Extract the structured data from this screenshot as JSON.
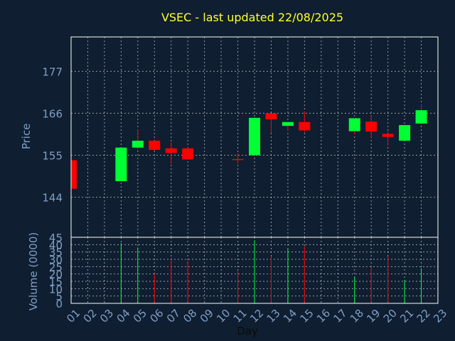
{
  "title": "VSEC - last updated 22/08/2025",
  "colors": {
    "background": "#0f1e30",
    "frame": "#ffffff",
    "grid": "#ffffff",
    "text": "#7f9fc7",
    "title": "#ffff33",
    "up": "#00ff33",
    "down": "#ff0000",
    "wick": "#ff0000"
  },
  "chart_data": [
    {
      "type": "candlestick",
      "ylabel": "Price",
      "ylim": [
        133.5,
        186
      ],
      "yticks": [
        "144",
        "155",
        "166",
        "177"
      ],
      "grid": true,
      "x_ticks": [
        "01",
        "02",
        "03",
        "04",
        "05",
        "06",
        "07",
        "08",
        "09",
        "10",
        "11",
        "12",
        "13",
        "14",
        "15",
        "16",
        "17",
        "18",
        "19",
        "20",
        "21",
        "22",
        "23"
      ],
      "candles": [
        {
          "day": "01",
          "open": 153.7,
          "close": 146.2,
          "high": 153.7,
          "low": 146.2
        },
        {
          "day": "04",
          "open": 148.2,
          "close": 157.0,
          "high": 157.0,
          "low": 148.2
        },
        {
          "day": "05",
          "open": 157.0,
          "close": 158.8,
          "high": 161.8,
          "low": 156.5
        },
        {
          "day": "06",
          "open": 158.8,
          "close": 156.4,
          "high": 158.8,
          "low": 156.2
        },
        {
          "day": "07",
          "open": 156.8,
          "close": 155.6,
          "high": 158.4,
          "low": 152.7
        },
        {
          "day": "08",
          "open": 156.8,
          "close": 153.9,
          "high": 157.0,
          "low": 153.9
        },
        {
          "day": "11",
          "open": 154.0,
          "close": 153.8,
          "high": 155.5,
          "low": 152.8
        },
        {
          "day": "12",
          "open": 155.0,
          "close": 164.8,
          "high": 165.0,
          "low": 155.0
        },
        {
          "day": "13",
          "open": 166.0,
          "close": 164.4,
          "high": 166.0,
          "low": 160.8
        },
        {
          "day": "14",
          "open": 162.7,
          "close": 163.7,
          "high": 163.7,
          "low": 161.5
        },
        {
          "day": "15",
          "open": 163.7,
          "close": 161.5,
          "high": 166.5,
          "low": 161.0
        },
        {
          "day": "18",
          "open": 161.3,
          "close": 164.7,
          "high": 164.7,
          "low": 160.5
        },
        {
          "day": "19",
          "open": 163.8,
          "close": 161.2,
          "high": 165.4,
          "low": 159.7
        },
        {
          "day": "20",
          "open": 160.6,
          "close": 159.8,
          "high": 161.3,
          "low": 157.5
        },
        {
          "day": "21",
          "open": 158.8,
          "close": 162.9,
          "high": 162.9,
          "low": 158.8
        },
        {
          "day": "22",
          "open": 163.3,
          "close": 166.8,
          "high": 168.3,
          "low": 163.3
        }
      ]
    },
    {
      "type": "bar",
      "ylabel": "Volume (0000)",
      "xlabel": "Day",
      "ylim": [
        0,
        45
      ],
      "yticks": [
        "0",
        "5",
        "10",
        "15",
        "20",
        "25",
        "30",
        "35",
        "40",
        "45"
      ],
      "grid": true,
      "bars": [
        {
          "day": "01",
          "value": 0,
          "direction": "down"
        },
        {
          "day": "04",
          "value": 41,
          "direction": "up"
        },
        {
          "day": "05",
          "value": 38,
          "direction": "up"
        },
        {
          "day": "06",
          "value": 20,
          "direction": "down"
        },
        {
          "day": "07",
          "value": 30,
          "direction": "down"
        },
        {
          "day": "08",
          "value": 29,
          "direction": "down"
        },
        {
          "day": "11",
          "value": 22,
          "direction": "down"
        },
        {
          "day": "12",
          "value": 43,
          "direction": "up"
        },
        {
          "day": "13",
          "value": 32,
          "direction": "down"
        },
        {
          "day": "14",
          "value": 37,
          "direction": "up"
        },
        {
          "day": "15",
          "value": 39,
          "direction": "down"
        },
        {
          "day": "18",
          "value": 18,
          "direction": "up"
        },
        {
          "day": "19",
          "value": 25,
          "direction": "down"
        },
        {
          "day": "20",
          "value": 32,
          "direction": "down"
        },
        {
          "day": "21",
          "value": 16,
          "direction": "up"
        },
        {
          "day": "22",
          "value": 24,
          "direction": "up"
        }
      ]
    }
  ]
}
